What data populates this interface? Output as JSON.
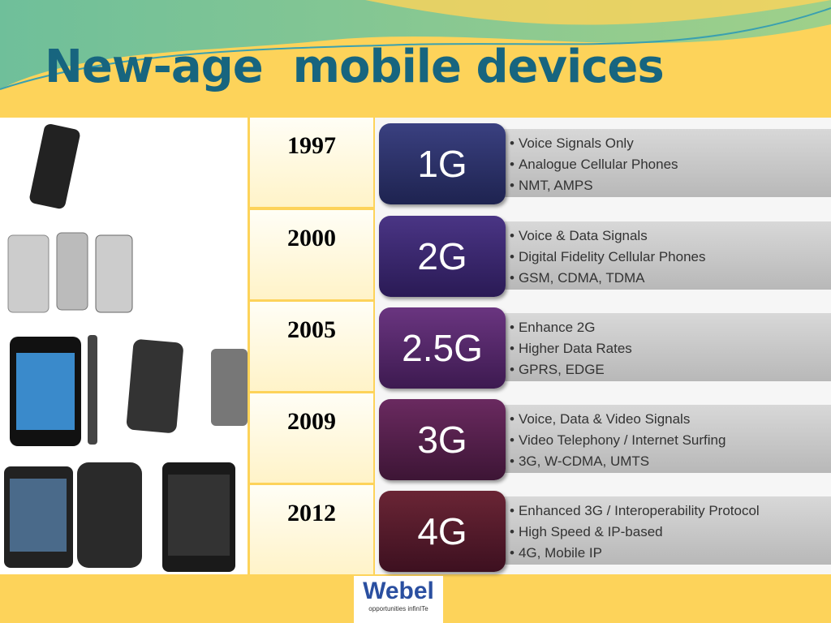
{
  "title": "New-age  mobile devices",
  "rows": [
    {
      "year": "1997",
      "generation": "1G",
      "bullets": [
        "Voice Signals Only",
        "Analogue Cellular Phones",
        "NMT, AMPS"
      ]
    },
    {
      "year": "2000",
      "generation": "2G",
      "bullets": [
        "Voice & Data Signals",
        "Digital Fidelity Cellular Phones",
        "GSM, CDMA, TDMA"
      ]
    },
    {
      "year": "2005",
      "generation": "2.5G",
      "bullets": [
        "Enhance 2G",
        "Higher Data Rates",
        "GPRS, EDGE"
      ]
    },
    {
      "year": "2009",
      "generation": "3G",
      "bullets": [
        "Voice, Data & Video Signals",
        "Video Telephony / Internet Surfing",
        "3G, W-CDMA, UMTS"
      ]
    },
    {
      "year": "2012",
      "generation": "4G",
      "bullets": [
        "Enhanced 3G / Interoperability Protocol",
        "High Speed & IP-based",
        "4G, Mobile IP"
      ]
    }
  ],
  "logo": {
    "name": "Webel",
    "tagline": "opportunities infinITe"
  }
}
